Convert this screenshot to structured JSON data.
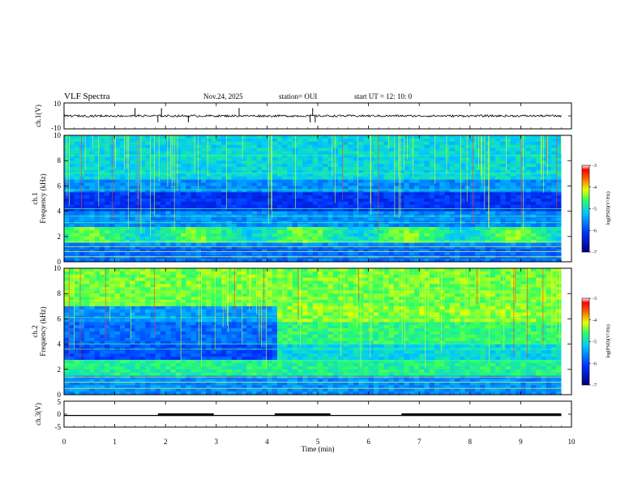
{
  "header": {
    "title": "VLF Spectra",
    "date": "Nov.24, 2025",
    "station": "station= OUI",
    "start_ut": "start  UT =   12: 10: 0"
  },
  "colors": {
    "spectrogram_low": "#00007a",
    "spectrogram_mid": "#1e6cff",
    "spectrogram_high": "#3cff8c",
    "spectrogram_peak": "#ff1a00",
    "trace": "#000000"
  },
  "chart_data": [
    {
      "type": "line",
      "name": "ch1-voltage",
      "ylabel": "ch.1(V)",
      "ylim": [
        -10,
        10
      ],
      "y_ticks": [
        "10",
        "-10"
      ],
      "xlim": [
        0,
        10
      ],
      "baseline": 0,
      "spikes_at_min": [
        1.4,
        1.85,
        1.92,
        2.45,
        3.45,
        4.85,
        4.9,
        4.95
      ]
    },
    {
      "type": "heatmap",
      "name": "ch1-spectrogram",
      "ylabel": "ch.1\nFrequency (kHz)",
      "ylim": [
        0,
        10
      ],
      "y_ticks": [
        "0",
        "2",
        "4",
        "6",
        "8",
        "10"
      ],
      "xlim": [
        0,
        9.8
      ],
      "colorbar": {
        "label": "log(PSD)(V²/Hz)",
        "range": [
          -7,
          -3
        ],
        "ticks": [
          "-3",
          "-4",
          "-5",
          "-6",
          "-7"
        ]
      }
    },
    {
      "type": "heatmap",
      "name": "ch2-spectrogram",
      "ylabel": "ch.2\nFrequency (kHz)",
      "ylim": [
        0,
        10
      ],
      "y_ticks": [
        "0",
        "2",
        "4",
        "6",
        "8",
        "10"
      ],
      "xlim": [
        0,
        9.8
      ],
      "colorbar": {
        "label": "log(PSD)(V²/Hz)",
        "range": [
          -7,
          -3
        ],
        "ticks": [
          "-3",
          "-4",
          "-5",
          "-6",
          "-7"
        ]
      }
    },
    {
      "type": "line",
      "name": "ch3-voltage",
      "ylabel": "ch.3(V)",
      "ylim": [
        -5,
        5
      ],
      "y_ticks": [
        "5",
        "0",
        "-5"
      ],
      "xlim": [
        0,
        10
      ],
      "baseline": -0.5,
      "high_intervals_min": [
        [
          1.85,
          2.95
        ],
        [
          4.15,
          5.25
        ],
        [
          6.65,
          9.8
        ]
      ]
    }
  ],
  "x_axis": {
    "label": "Time (min)",
    "ticks": [
      "0",
      "1",
      "2",
      "3",
      "4",
      "5",
      "6",
      "7",
      "8",
      "9",
      "10"
    ],
    "range": [
      0,
      10
    ]
  }
}
